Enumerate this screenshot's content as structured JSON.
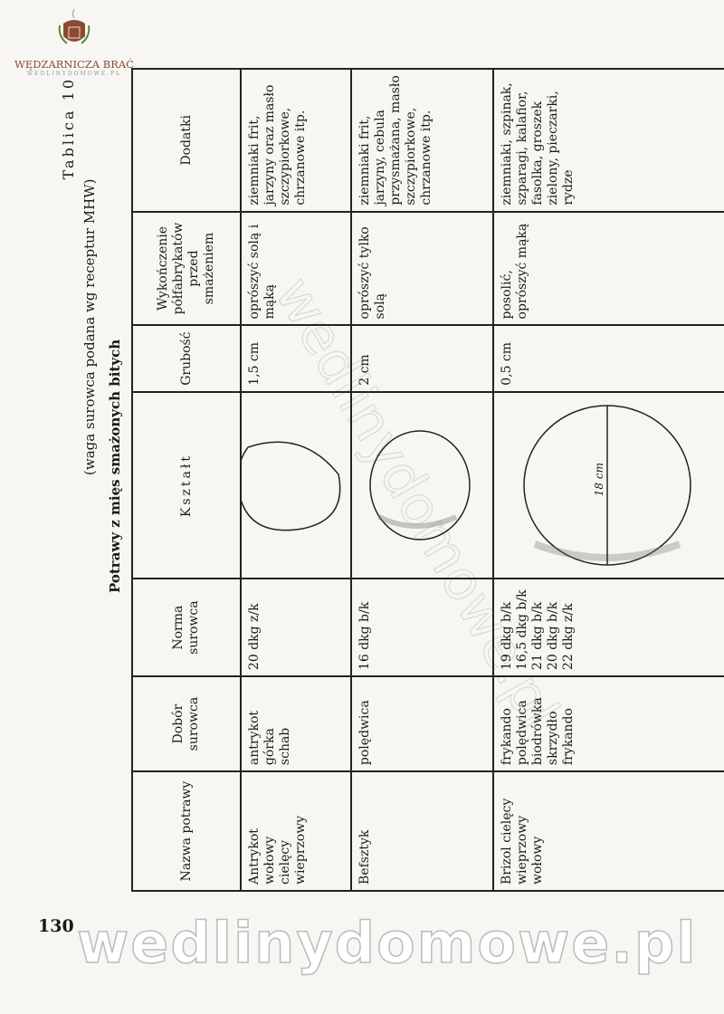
{
  "logo": {
    "name": "WĘDZARNICZA BRAĆ",
    "sub": "WEDLINYDOMOWE.PL"
  },
  "title": {
    "table_no": "Tablica 10",
    "subtitle": "(waga surowca podana wg receptur MHW)",
    "main": "Potrawy z mięs smażonych bitych"
  },
  "headers": [
    "Nazwa potrawy",
    "Dobór surowca",
    "Norma surowca",
    "Kształt",
    "Grubość",
    "Wykończenie półfabrykatów przed smażeniem",
    "Dodatki"
  ],
  "rows": [
    {
      "name": [
        "Antrykot",
        "wołowy",
        "cielęcy",
        "wieprzowy"
      ],
      "surowiec": [
        "antrykot",
        "górka",
        "schab"
      ],
      "norma": [
        "20 dkg z/k"
      ],
      "grubosc": "1,5 cm",
      "wykonczenie": "oprószyć solą i mąką",
      "dodatki": "ziemniaki frit, jarzyny oraz masło szczypiorkowe, chrzanowe itp."
    },
    {
      "name": [
        "Befsztyk"
      ],
      "surowiec": [
        "polędwica"
      ],
      "norma": [
        "16 dkg b/k"
      ],
      "grubosc": "2 cm",
      "wykonczenie": "oprószyć tylko solą",
      "dodatki": "ziemniaki frit, jarzyny, cebula przysmażana, masło szczypiorkowe, chrzanowe itp."
    },
    {
      "name": [
        "Brizol cielęcy",
        "wieprzowy",
        "wołowy"
      ],
      "surowiec": [
        "frykando",
        "polędwica",
        "biodrówka",
        "skrzydło",
        "frykando"
      ],
      "norma": [
        "19 dkg b/k",
        "16,5 dkg b/k",
        "21 dkg b/k",
        "20 dkg b/k",
        "22 dkg z/k"
      ],
      "grubosc": "0,5 cm",
      "wykonczenie": "posolić, oprószyć mąką",
      "dodatki": "ziemniaki, szpinak, szparagi, kalafior, fasolka, groszek zielony, pieczarki, rydze",
      "shape_label": "18 cm"
    }
  ],
  "page_number": "130",
  "watermark": "wedlinydomowe.pl",
  "colors": {
    "logo": "#8b4a34",
    "ink": "#1a1a1a",
    "paper": "#f7f6f3"
  }
}
